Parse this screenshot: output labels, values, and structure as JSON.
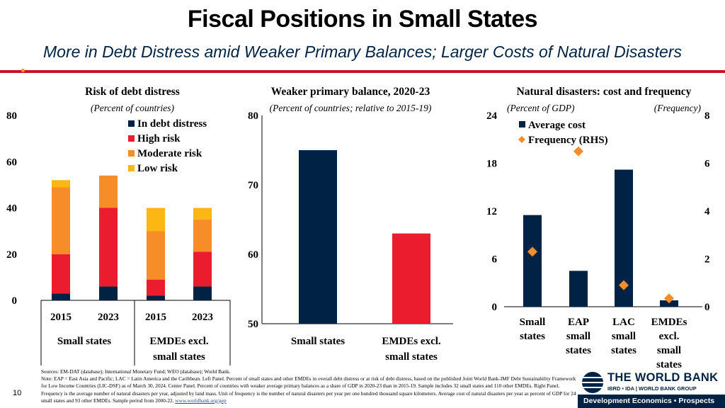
{
  "header": {
    "title": "Fiscal Positions in Small States",
    "subtitle": "More in Debt Distress amid Weaker Primary Balances; Larger Costs of Natural Disasters"
  },
  "colors": {
    "navy": "#002345",
    "red": "#eb1c2d",
    "orange": "#f78d28",
    "yellow": "#fdb714",
    "diamond": "#f78d28"
  },
  "chart_data": [
    {
      "type": "bar",
      "stacked": true,
      "title": "Risk of debt distress",
      "subtitle": "(Percent of countries)",
      "categories": [
        "2015",
        "2023",
        "2015",
        "2023"
      ],
      "groups": [
        {
          "label": "Small states",
          "span": [
            0,
            1
          ]
        },
        {
          "label": "EMDEs excl. small states",
          "span": [
            2,
            3
          ]
        }
      ],
      "series": [
        {
          "name": "In debt distress",
          "color": "#002345",
          "values": [
            3,
            6,
            2,
            6
          ]
        },
        {
          "name": "High risk",
          "color": "#eb1c2d",
          "values": [
            17,
            34,
            7,
            15
          ]
        },
        {
          "name": "Moderate risk",
          "color": "#f78d28",
          "values": [
            29,
            14,
            21,
            14
          ]
        },
        {
          "name": "Low risk",
          "color": "#fdb714",
          "values": [
            3,
            0,
            10,
            5
          ]
        }
      ],
      "ylim": [
        0,
        80
      ],
      "yticks": [
        "0",
        "20",
        "40",
        "60",
        "80"
      ]
    },
    {
      "type": "bar",
      "title": "Weaker primary balance, 2020-23",
      "subtitle": "(Percent of countries; relative to 2015-19)",
      "categories": [
        "Small states",
        "EMDEs excl. small states"
      ],
      "values": [
        75,
        63
      ],
      "colors": [
        "#002345",
        "#eb1c2d"
      ],
      "ylim": [
        50,
        80
      ],
      "yticks": [
        "50",
        "60",
        "70",
        "80"
      ]
    },
    {
      "type": "bar",
      "title": "Natural disasters: cost and frequency",
      "subtitle_left": "(Percent of GDP)",
      "subtitle_right": "(Frequency)",
      "categories": [
        "Small states",
        "EAP small states",
        "LAC small states",
        "EMDEs excl. small states"
      ],
      "series": [
        {
          "name": "Average cost",
          "kind": "bar",
          "axis": "left",
          "color": "#002345",
          "values": [
            11.5,
            4.5,
            17.2,
            0.8
          ]
        },
        {
          "name": "Frequency (RHS)",
          "kind": "diamond",
          "axis": "right",
          "color": "#f78d28",
          "values": [
            2.3,
            6.5,
            0.9,
            0.35
          ]
        }
      ],
      "ylim": [
        0,
        24
      ],
      "yticks": [
        "0",
        "6",
        "12",
        "18",
        "24"
      ],
      "y2lim": [
        0,
        8
      ],
      "y2ticks": [
        "0",
        "2",
        "4",
        "6",
        "8"
      ]
    }
  ],
  "footer": {
    "source": "Sources: EM-DAT (database); International Monetary Fund; WEO (database); World Bank.",
    "note": "Note: EAP = East Asia and Pacific; LAC = Latin America and the Caribbean. Left Panel. Percent of small states and other EMDEs in overall debt distress or at risk of debt distress, based on the published Joint World Bank-IMF Debt Sustainability Framework for Low Income Countries (LIC-DSF) as of March 30, 2024. Center Panel. Percent of countries with weaker average primary balances as a share of GDP in 2020-23 than in 2015-19. Sample includes 32 small states and 110 other EMDEs. Right Panel. Frequency is the average number of natural disasters per year, adjusted by land mass. Unit of frequency is the number of natural disasters per year per one hundred thousand square kilometers. Average cost of natural disasters per year as percent of GDP for 24 small states and 93 other EMDEs. Sample period from 2000-22.",
    "link": "www.worldbank.org/gep",
    "page": "10"
  },
  "logo": {
    "name": "THE WORLD BANK",
    "tagline": "IBRD • IDA | WORLD BANK GROUP",
    "division": "Development Economics • Prospects"
  }
}
